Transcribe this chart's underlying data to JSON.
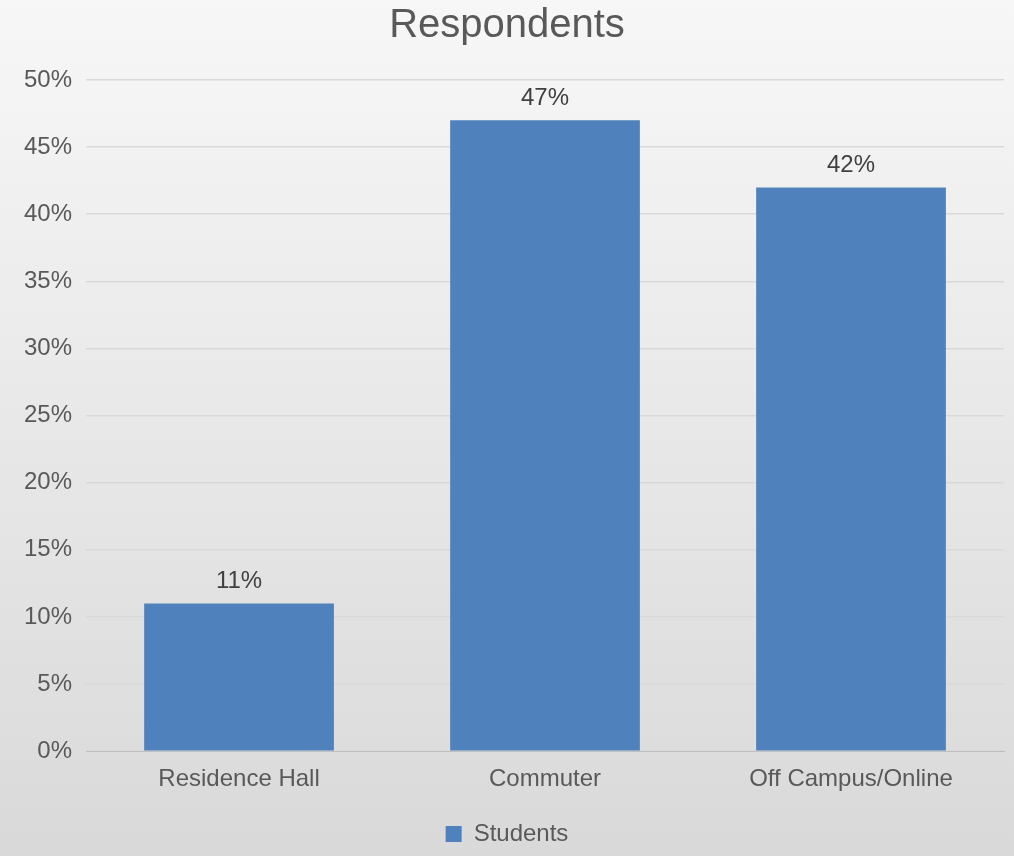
{
  "chart_data": {
    "type": "bar",
    "title": "Respondents",
    "categories": [
      "Residence Hall",
      "Commuter",
      "Off Campus/Online"
    ],
    "series": [
      {
        "name": "Students",
        "color": "#4f81bd",
        "values": [
          11,
          47,
          42
        ],
        "value_labels": [
          "11%",
          "47%",
          "42%"
        ]
      }
    ],
    "ylim": [
      0,
      50
    ],
    "yticks": [
      {
        "value": 0,
        "label": "0%"
      },
      {
        "value": 5,
        "label": "5%"
      },
      {
        "value": 10,
        "label": "10%"
      },
      {
        "value": 15,
        "label": "15%"
      },
      {
        "value": 20,
        "label": "20%"
      },
      {
        "value": 25,
        "label": "25%"
      },
      {
        "value": 30,
        "label": "30%"
      },
      {
        "value": 35,
        "label": "35%"
      },
      {
        "value": 40,
        "label": "40%"
      },
      {
        "value": 45,
        "label": "45%"
      },
      {
        "value": 50,
        "label": "50%"
      }
    ],
    "grid": "y",
    "legend": "bottom"
  }
}
